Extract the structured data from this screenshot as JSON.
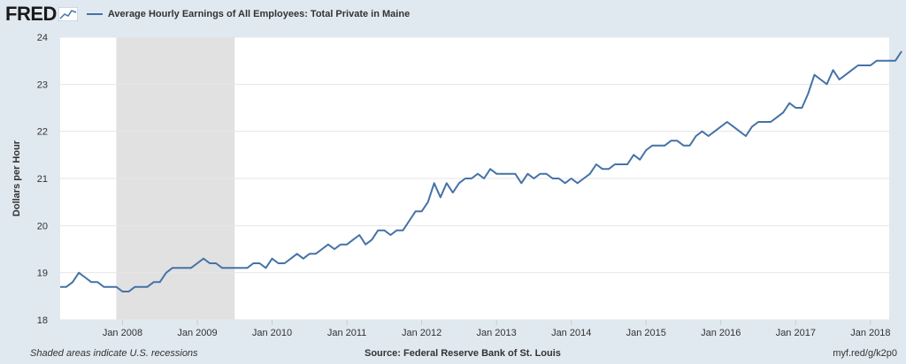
{
  "header": {
    "logo_text": "FRED",
    "logo_graph_icon": "line-graph-icon"
  },
  "colors": {
    "background": "#e1e9f0",
    "plot_background": "#ffffff",
    "line": "#4572a7",
    "recession_shade": "#e1e1e1",
    "grid": "#e6e6e6"
  },
  "footer": {
    "note": "Shaded areas indicate U.S. recessions",
    "source": "Source: Federal Reserve Bank of St. Louis",
    "url": "myf.red/g/k2p0"
  },
  "chart_data": {
    "type": "line",
    "title": "Average Hourly Earnings of All Employees: Total Private in Maine",
    "xlabel": "",
    "ylabel": "Dollars per Hour",
    "ylim": [
      18,
      24
    ],
    "yticks": [
      18,
      19,
      20,
      21,
      22,
      23,
      24
    ],
    "xlim": [
      "2007-03",
      "2018-04"
    ],
    "xticks": [
      {
        "label": "Jan 2008",
        "date": "2008-01"
      },
      {
        "label": "Jan 2009",
        "date": "2009-01"
      },
      {
        "label": "Jan 2010",
        "date": "2010-01"
      },
      {
        "label": "Jan 2011",
        "date": "2011-01"
      },
      {
        "label": "Jan 2012",
        "date": "2012-01"
      },
      {
        "label": "Jan 2013",
        "date": "2013-01"
      },
      {
        "label": "Jan 2014",
        "date": "2014-01"
      },
      {
        "label": "Jan 2015",
        "date": "2015-01"
      },
      {
        "label": "Jan 2016",
        "date": "2016-01"
      },
      {
        "label": "Jan 2017",
        "date": "2017-01"
      },
      {
        "label": "Jan 2018",
        "date": "2018-01"
      }
    ],
    "grid": true,
    "recession": {
      "start": "2007-12",
      "end": "2009-06"
    },
    "series": [
      {
        "name": "Average Hourly Earnings of All Employees: Total Private in Maine",
        "start": "2007-03",
        "frequency": "monthly",
        "values": [
          18.7,
          18.7,
          18.8,
          19.0,
          18.9,
          18.8,
          18.8,
          18.7,
          18.7,
          18.7,
          18.6,
          18.6,
          18.7,
          18.7,
          18.7,
          18.8,
          18.8,
          19.0,
          19.1,
          19.1,
          19.1,
          19.1,
          19.2,
          19.3,
          19.2,
          19.2,
          19.1,
          19.1,
          19.1,
          19.1,
          19.1,
          19.2,
          19.2,
          19.1,
          19.3,
          19.2,
          19.2,
          19.3,
          19.4,
          19.3,
          19.4,
          19.4,
          19.5,
          19.6,
          19.5,
          19.6,
          19.6,
          19.7,
          19.8,
          19.6,
          19.7,
          19.9,
          19.9,
          19.8,
          19.9,
          19.9,
          20.1,
          20.3,
          20.3,
          20.5,
          20.9,
          20.6,
          20.9,
          20.7,
          20.9,
          21.0,
          21.0,
          21.1,
          21.0,
          21.2,
          21.1,
          21.1,
          21.1,
          21.1,
          20.9,
          21.1,
          21.0,
          21.1,
          21.1,
          21.0,
          21.0,
          20.9,
          21.0,
          20.9,
          21.0,
          21.1,
          21.3,
          21.2,
          21.2,
          21.3,
          21.3,
          21.3,
          21.5,
          21.4,
          21.6,
          21.7,
          21.7,
          21.7,
          21.8,
          21.8,
          21.7,
          21.7,
          21.9,
          22.0,
          21.9,
          22.0,
          22.1,
          22.2,
          22.1,
          22.0,
          21.9,
          22.1,
          22.2,
          22.2,
          22.2,
          22.3,
          22.4,
          22.6,
          22.5,
          22.5,
          22.8,
          23.2,
          23.1,
          23.0,
          23.3,
          23.1,
          23.2,
          23.3,
          23.4,
          23.4,
          23.4,
          23.5,
          23.5,
          23.5,
          23.5,
          23.7
        ]
      }
    ]
  }
}
